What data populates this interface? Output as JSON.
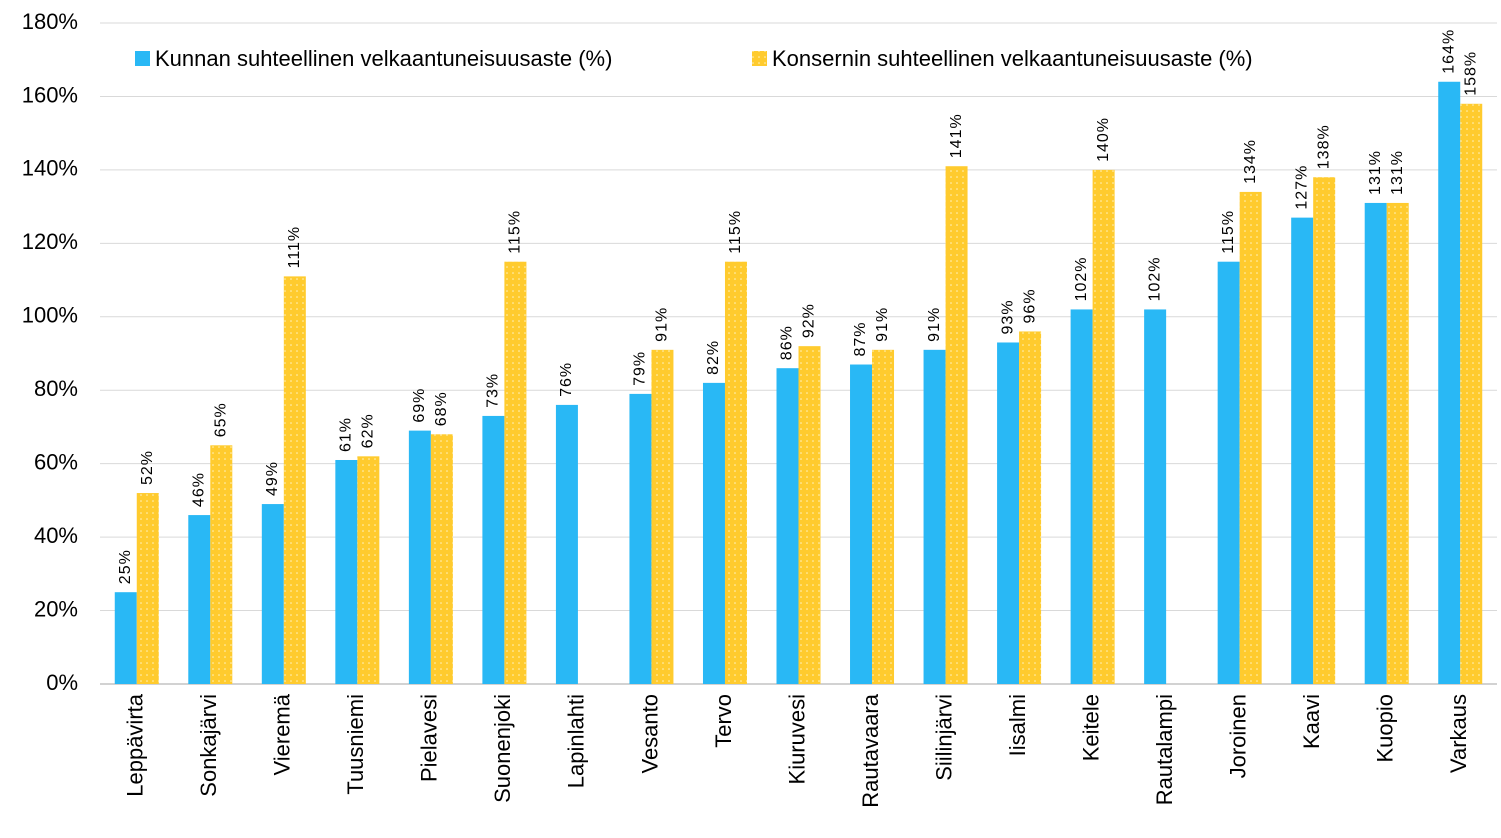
{
  "chart_data": {
    "type": "bar",
    "categories": [
      "Leppävirta",
      "Sonkajärvi",
      "Vieremä",
      "Tuusniemi",
      "Pielavesi",
      "Suonenjoki",
      "Lapinlahti",
      "Vesanto",
      "Tervo",
      "Kiuruvesi",
      "Rautavaara",
      "Siilinjärvi",
      "Iisalmi",
      "Keitele",
      "Rautalampi",
      "Joroinen",
      "Kaavi",
      "Kuopio",
      "Varkaus"
    ],
    "series": [
      {
        "name": "Kunnan suhteellinen velkaantuneisuusaste (%)",
        "color": "#29b8f5",
        "values": [
          25,
          46,
          49,
          61,
          69,
          73,
          76,
          79,
          82,
          86,
          87,
          91,
          93,
          102,
          102,
          115,
          127,
          131,
          164
        ],
        "value_labels": [
          "25%",
          "46%",
          "49%",
          "61%",
          "69%",
          "73%",
          "76%",
          "79%",
          "82%",
          "86%",
          "87%",
          "91%",
          "93%",
          "102%",
          "102%",
          "115%",
          "127%",
          "131%",
          "164%"
        ]
      },
      {
        "name": "Konsernin suhteellinen velkaantuneisuusaste (%)",
        "color": "#ffcb2e",
        "values": [
          52,
          65,
          111,
          62,
          68,
          115,
          null,
          91,
          115,
          92,
          91,
          141,
          96,
          140,
          null,
          134,
          138,
          131,
          158
        ],
        "value_labels": [
          "52%",
          "65%",
          "111%",
          "62%",
          "68%",
          "115%",
          null,
          "91%",
          "115%",
          "92%",
          "91%",
          "141%",
          "96%",
          "140%",
          null,
          "134%",
          "138%",
          "131%",
          "158%"
        ]
      }
    ],
    "ylim": [
      0,
      180
    ],
    "yticks": [
      {
        "value": 0,
        "label": "0%"
      },
      {
        "value": 20,
        "label": "20%"
      },
      {
        "value": 40,
        "label": "40%"
      },
      {
        "value": 60,
        "label": "60%"
      },
      {
        "value": 80,
        "label": "80%"
      },
      {
        "value": 100,
        "label": "100%"
      },
      {
        "value": 120,
        "label": "120%"
      },
      {
        "value": 140,
        "label": "140%"
      },
      {
        "value": 160,
        "label": "160%"
      },
      {
        "value": 180,
        "label": "180%"
      }
    ],
    "grid": true
  }
}
